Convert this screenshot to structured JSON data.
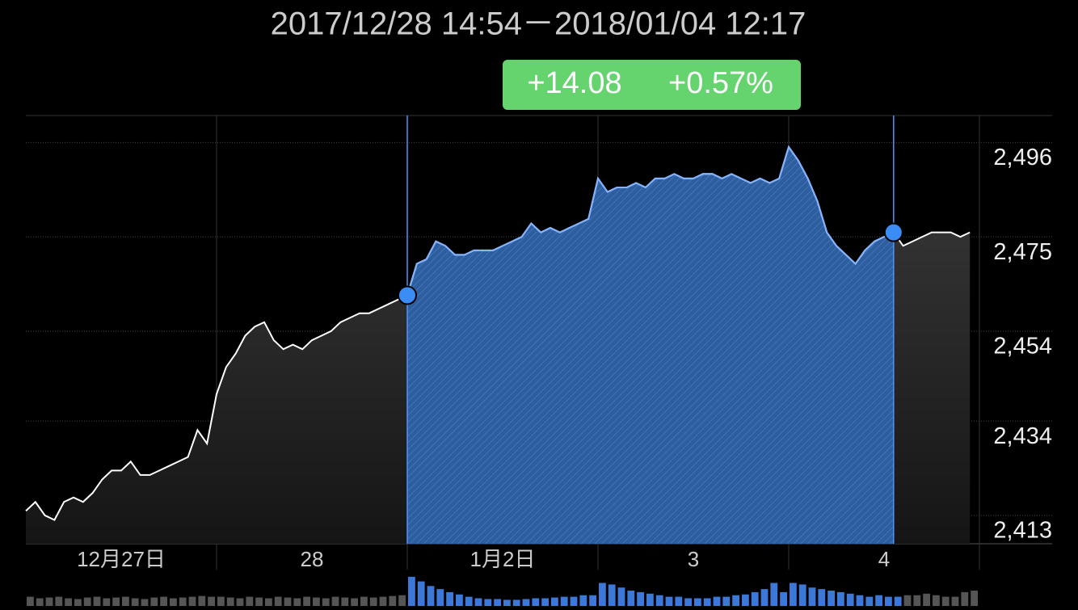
{
  "chart_data": {
    "type": "line",
    "title": "2017/12/28 14:54－2018/01/04 12:17",
    "change": "+14.08",
    "change_percent": "+0.57%",
    "day_labels": [
      "12月27日",
      "28",
      "1月2日",
      "3",
      "4"
    ],
    "values": [
      2414,
      2416,
      2413,
      2412,
      2416,
      2417,
      2416,
      2418,
      2421,
      2423,
      2423,
      2425,
      2422,
      2422,
      2423,
      2424,
      2425,
      2426,
      2432,
      2429,
      2440,
      2446,
      2449,
      2453,
      2455,
      2456,
      2452,
      2450,
      2451,
      2450,
      2452,
      2453,
      2454,
      2456,
      2457,
      2458,
      2458,
      2459,
      2460,
      2461,
      2462,
      2469,
      2470,
      2474,
      2473,
      2471,
      2471,
      2472,
      2472,
      2472,
      2473,
      2474,
      2475,
      2478,
      2476,
      2477,
      2476,
      2477,
      2478,
      2479,
      2488,
      2485,
      2486,
      2486,
      2487,
      2486,
      2488,
      2488,
      2489,
      2488,
      2488,
      2489,
      2489,
      2488,
      2489,
      2488,
      2487,
      2488,
      2487,
      2488,
      2495,
      2492,
      2488,
      2483,
      2476,
      2473,
      2471,
      2469,
      2472,
      2474,
      2475,
      2476,
      2473,
      2474,
      2475,
      2476,
      2476,
      2476,
      2475,
      2476
    ],
    "volume": [
      12,
      10,
      11,
      12,
      10,
      9,
      11,
      12,
      10,
      11,
      12,
      10,
      9,
      11,
      12,
      10,
      11,
      12,
      13,
      12,
      12,
      11,
      10,
      12,
      11,
      10,
      12,
      11,
      10,
      12,
      11,
      10,
      12,
      11,
      10,
      12,
      11,
      12,
      13,
      14,
      38,
      32,
      26,
      22,
      18,
      15,
      12,
      10,
      9,
      9,
      8,
      8,
      9,
      10,
      10,
      11,
      12,
      12,
      14,
      14,
      30,
      28,
      24,
      20,
      18,
      16,
      14,
      12,
      12,
      10,
      10,
      10,
      12,
      12,
      14,
      15,
      18,
      22,
      30,
      18,
      30,
      28,
      24,
      22,
      20,
      18,
      16,
      14,
      12,
      14,
      12,
      12,
      14,
      14,
      16,
      14,
      12,
      12,
      18,
      20
    ],
    "ylim": [
      2406.7,
      2502
    ],
    "yticks": [
      {
        "value": 2413,
        "label": "2,413"
      },
      {
        "value": 2434,
        "label": "2,434"
      },
      {
        "value": 2454,
        "label": "2,454"
      },
      {
        "value": 2475,
        "label": "2,475"
      },
      {
        "value": 2496,
        "label": "2,496"
      }
    ],
    "selection": [
      40,
      91
    ]
  }
}
